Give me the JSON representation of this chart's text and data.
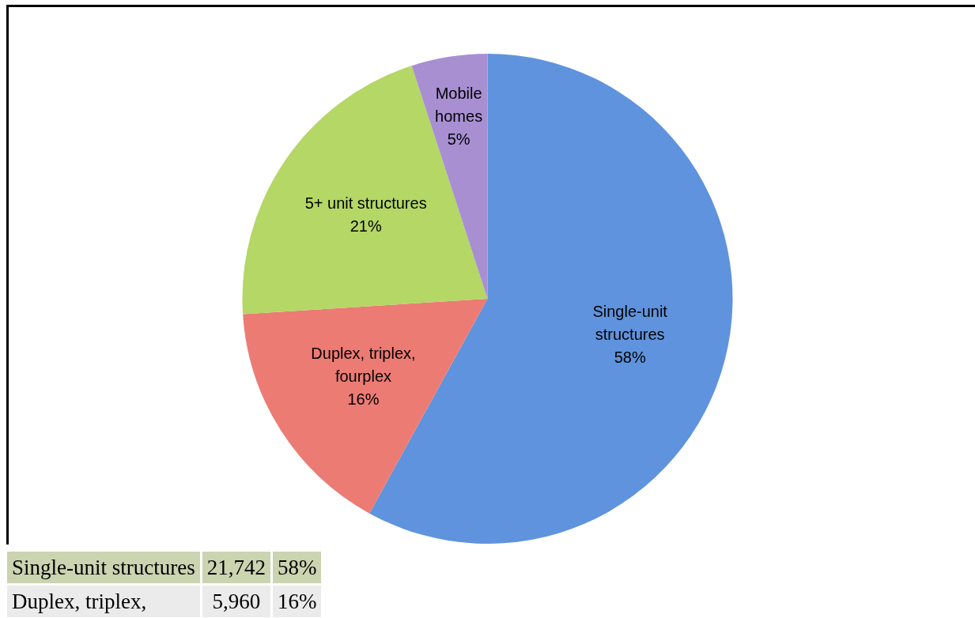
{
  "chart_data": {
    "type": "pie",
    "categories": [
      "Single-unit structures",
      "Duplex, triplex, fourplex",
      "5+ unit structures",
      "Mobile homes"
    ],
    "values": [
      58,
      16,
      21,
      5
    ],
    "colors": [
      "#5f93dd",
      "#ec7b74",
      "#b4d765",
      "#a88fd2"
    ],
    "value_labels": [
      "58%",
      "16%",
      "21%",
      "5%"
    ],
    "legend": false,
    "annotations": [
      "Single-unit structures",
      "21,742",
      "58%",
      "Duplex, triplex,",
      "5,960",
      "16%"
    ]
  }
}
